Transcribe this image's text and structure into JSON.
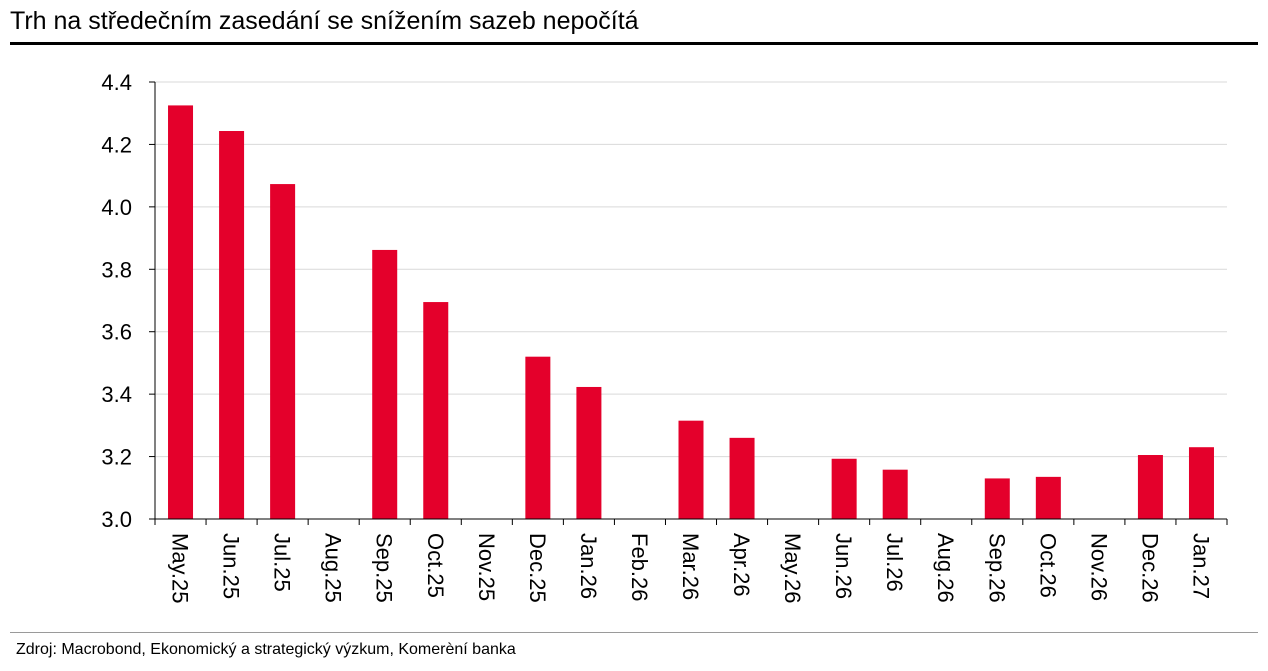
{
  "header": {
    "title": "Trh na středečním zasedání se snížením sazeb nepočítá"
  },
  "footer": {
    "source": "Zdroj: Macrobond, Ekonomický a strategický výzkum, Komerèní banka"
  },
  "colors": {
    "bar": "#e4002b",
    "grid": "#d9d9d9",
    "axis": "#000000",
    "title_rule": "#000000",
    "source_rule": "#9a9a9a"
  },
  "chart_data": {
    "type": "bar",
    "title": "Trh na středečním zasedání se snížením sazeb nepočítá",
    "xlabel": "",
    "ylabel": "",
    "ylim": [
      3.0,
      4.4
    ],
    "yticks": [
      "3.0",
      "3.2",
      "3.4",
      "3.6",
      "3.8",
      "4.0",
      "4.2",
      "4.4"
    ],
    "grid": true,
    "legend": "none",
    "categories": [
      "May.25",
      "Jun.25",
      "Jul.25",
      "Aug.25",
      "Sep.25",
      "Oct.25",
      "Nov.25",
      "Dec.25",
      "Jan.26",
      "Feb.26",
      "Mar.26",
      "Apr.26",
      "May.26",
      "Jun.26",
      "Jul.26",
      "Aug.26",
      "Sep.26",
      "Oct.26",
      "Nov.26",
      "Dec.26",
      "Jan.27"
    ],
    "values": [
      4.325,
      4.243,
      4.073,
      null,
      3.862,
      3.695,
      null,
      3.52,
      3.423,
      null,
      3.315,
      3.26,
      null,
      3.193,
      3.158,
      null,
      3.13,
      3.135,
      null,
      3.205,
      3.23
    ]
  }
}
